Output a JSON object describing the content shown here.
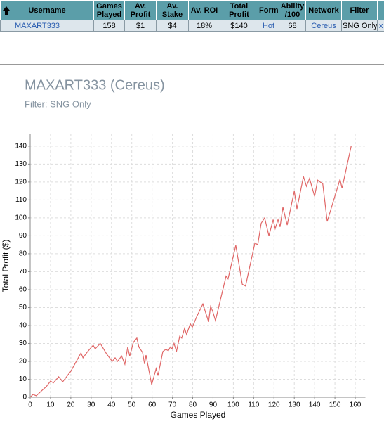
{
  "table": {
    "headers": [
      "Username",
      "Games Played",
      "Av. Profit",
      "Av. Stake",
      "Av. ROI",
      "Total Profit",
      "Form",
      "Ability /100",
      "Network",
      "Filter"
    ],
    "rows": [
      [
        "MAXART333",
        "158",
        "$1",
        "$4",
        "18%",
        "$140",
        "Hot",
        "68",
        "Cereus",
        "SNG Only"
      ]
    ],
    "remove": "x"
  },
  "chart_data": {
    "type": "line",
    "title": "MAXART333 (Cereus)",
    "subtitle": "Filter: SNG Only",
    "x_label": "Games Played",
    "y_label": "Total Profit ($)",
    "color": "#e06666",
    "x": [
      0,
      1.4,
      3,
      6,
      8,
      10,
      11.4,
      14,
      16,
      20,
      25,
      26,
      28.3,
      31,
      32,
      34.5,
      37.7,
      40.4,
      41.8,
      43,
      45,
      46.6,
      48,
      49,
      50.8,
      52.5,
      53.5,
      55.3,
      56.3,
      57,
      59.8,
      62,
      62.9,
      65.3,
      66.7,
      68,
      69,
      69.8,
      70.8,
      72,
      73.6,
      74.6,
      76,
      77,
      78.8,
      79.8,
      82,
      85,
      86.7,
      87.8,
      88.8,
      89.8,
      91.2,
      96.4,
      97.4,
      101.2,
      104.4,
      106,
      110.6,
      112,
      113.7,
      115.4,
      117.5,
      119.6,
      120.6,
      122,
      123,
      124.4,
      126.5,
      130,
      131.3,
      134.5,
      136,
      137.5,
      140,
      141.5,
      144,
      146.2,
      152.5,
      153.5,
      158
    ],
    "values": [
      0,
      1.6,
      0.8,
      4,
      6,
      9,
      8,
      11.4,
      8.6,
      14.5,
      24.7,
      22,
      25.5,
      29,
      27,
      30,
      24,
      20,
      22,
      20,
      23,
      18.4,
      28,
      23,
      30.6,
      33,
      28,
      25,
      18.5,
      23.5,
      7,
      16,
      12,
      25.5,
      26.7,
      26,
      28,
      27,
      30,
      25.5,
      34,
      33,
      38.4,
      35,
      41,
      39,
      45,
      52,
      46,
      42,
      50.6,
      48,
      42.7,
      67.5,
      66,
      84.7,
      63,
      62,
      86,
      85,
      97,
      100,
      90,
      99,
      94,
      99,
      95,
      106,
      96,
      115,
      105,
      123,
      117.6,
      122,
      112,
      121,
      119,
      98,
      121.5,
      116.5,
      140
    ],
    "xlim": [
      0,
      165
    ],
    "ylim": [
      0,
      147
    ],
    "xticks": [
      0,
      10,
      20,
      30,
      40,
      50,
      60,
      70,
      80,
      90,
      100,
      110,
      120,
      130,
      140,
      150,
      160
    ],
    "yticks": [
      0,
      10,
      20,
      30,
      40,
      50,
      60,
      70,
      80,
      90,
      100,
      110,
      120,
      130,
      140
    ],
    "grid": true
  }
}
